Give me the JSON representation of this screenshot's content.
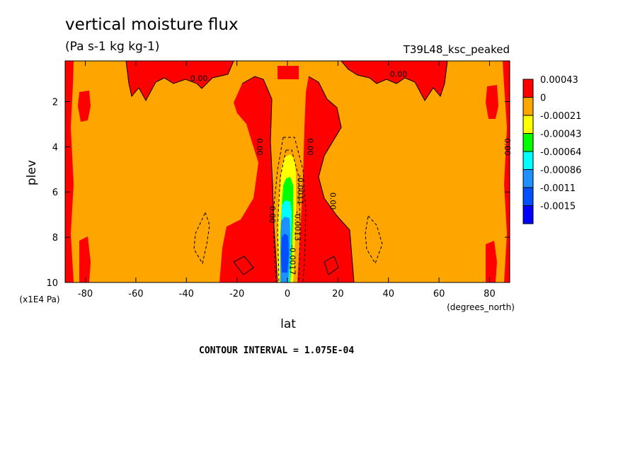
{
  "chart_data": {
    "type": "heatmap",
    "title": "vertical moisture flux",
    "subtitle": "(Pa s-1 kg kg-1)",
    "run_label": "T39L48_ksc_peaked",
    "xlabel": "lat",
    "x_units": "(degrees_north)",
    "ylabel": "plev",
    "y_units": "(x1E4 Pa)",
    "xlim": [
      -88,
      88
    ],
    "ylim": [
      0.2,
      10
    ],
    "y_inverted": true,
    "x_ticks": [
      "-80",
      "-60",
      "-40",
      "-20",
      "0",
      "20",
      "40",
      "60",
      "80"
    ],
    "x_tick_values": [
      -80,
      -60,
      -40,
      -20,
      0,
      20,
      40,
      60,
      80
    ],
    "y_ticks": [
      "2",
      "4",
      "6",
      "8",
      "10"
    ],
    "y_tick_values": [
      2,
      4,
      6,
      8,
      10
    ],
    "contour_interval_text": "CONTOUR INTERVAL = 1.075E-04",
    "colorbar": {
      "labels": [
        "0.00043",
        "0",
        "-0.00021",
        "-0.00043",
        "-0.00064",
        "-0.00086",
        "-0.0011",
        "-0.0015"
      ],
      "colors": [
        "#ff0000",
        "#ffa500",
        "#ffff00",
        "#00ff00",
        "#00ffff",
        "#1e90ff",
        "#0050ff",
        "#0000ff"
      ]
    },
    "contour_labels": [
      {
        "text": "0.00",
        "lat": -35,
        "plev": 1.1
      },
      {
        "text": "0.00",
        "lat": 44,
        "plev": 0.9
      },
      {
        "text": "0.00",
        "lat": -12,
        "plev": 4.0
      },
      {
        "text": "0.00",
        "lat": 8,
        "plev": 4.0
      },
      {
        "text": "0.00",
        "lat": 86,
        "plev": 4.0
      },
      {
        "text": "0.00",
        "lat": 17,
        "plev": 6.4
      },
      {
        "text": "0.00",
        "lat": -7,
        "plev": 7.0
      },
      {
        "text": "-0.0011",
        "lat": 4,
        "plev": 5.9
      },
      {
        "text": "-0.0013",
        "lat": 3,
        "plev": 7.5
      },
      {
        "text": "-0.0017",
        "lat": 1,
        "plev": 9.0
      }
    ]
  }
}
